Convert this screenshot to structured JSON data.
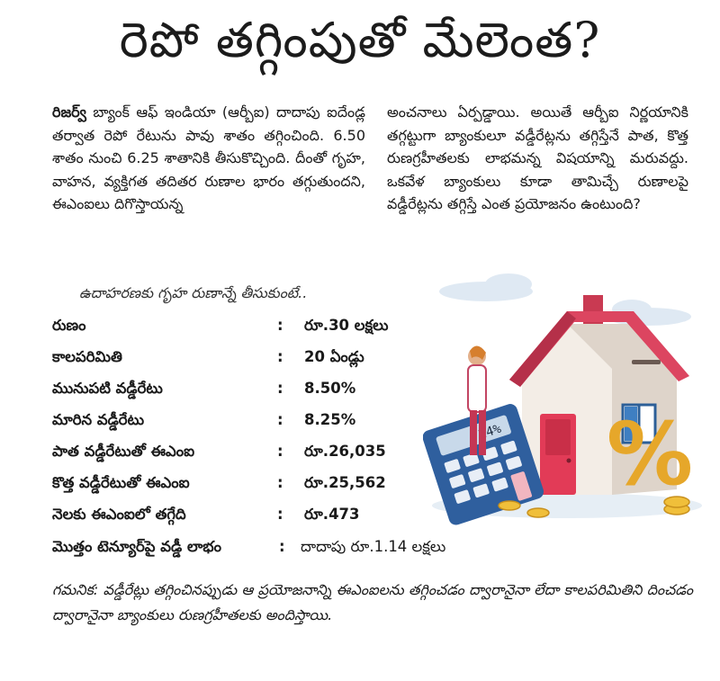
{
  "headline": "రెపో తగ్గింపుతో మేలెంత?",
  "left_column": {
    "lead": "రిజర్వ్",
    "text": " బ్యాంక్ ఆఫ్ ఇండియా (ఆర్బీఐ) దాదాపు ఐదేండ్ల తర్వాత రెపో రేటును పావు శాతం తగ్గించింది. 6.50 శాతం నుంచి 6.25 శాతానికి తీసుకొచ్చింది. దీంతో గృహ, వాహన, వ్యక్తిగత తదితర రుణాల భారం తగ్గుతుందని, ఈఎంఐలు దిగొస్తాయన్న"
  },
  "right_column": {
    "text": "అంచనాలు ఏర్పడ్డాయి. అయితే ఆర్బీఐ నిర్ణయానికి తగ్గట్టుగా బ్యాంకులూ వడ్డీరేట్లను తగ్గిస్తేనే పాత, కొత్త రుణగ్రహీతలకు లాభమన్న విషయాన్ని మరువద్దు. ఒకవేళ బ్యాంకులు కూడా తామిచ్చే రుణాలపై వడ్డీరేట్లను తగ్గిస్తే ఎంత ప్రయోజనం ఉంటుంది?"
  },
  "intro": "ఉదాహరణకు గృహ రుణాన్నే తీసుకుంటే..",
  "rows": [
    {
      "label": "రుణం",
      "sep": ":",
      "value": "రూ.30 లక్షలు"
    },
    {
      "label": "కాలపరిమితి",
      "sep": ":",
      "value": "20 ఏండ్లు"
    },
    {
      "label": "మునుపటి వడ్డీరేటు",
      "sep": ":",
      "value": "8.50%"
    },
    {
      "label": "మారిన వడ్డీరేటు",
      "sep": ":",
      "value": "8.25%"
    },
    {
      "label": "పాత వడ్డీరేటుతో ఈఎంఐ",
      "sep": ":",
      "value": "రూ.26,035"
    },
    {
      "label": "కొత్త వడ్డీరేటుతో ఈఎంఐ",
      "sep": ":",
      "value": "రూ.25,562"
    },
    {
      "label": "నెలకు ఈఎంఐలో తగ్గేది",
      "sep": ":",
      "value": "రూ.473"
    },
    {
      "label": "మొత్తం టెన్యూర్‌పై వడ్డీ లాభం",
      "sep": ":",
      "value": "దాదాపు రూ.1.14 లక్షలు"
    }
  ],
  "note": {
    "label": "గమనిక:",
    "text": " వడ్డీరేట్లు తగ్గించినప్పుడు ఆ ప్రయోజనాన్ని ఈఎంఐలను తగ్గించడం ద్వారానైనా లేదా కాలపరిమితిని దించడం ద్వారానైనా బ్యాంకులు రుణగ్రహీతలకు అందిస్తాయి."
  },
  "illustration": {
    "calculator_display": "24%",
    "percent_sign": "%",
    "colors": {
      "roof": "#d9425a",
      "door": "#e23b57",
      "wall": "#f5f0ea",
      "calculator": "#2f5f9e",
      "percent": "#e6a72a"
    }
  }
}
